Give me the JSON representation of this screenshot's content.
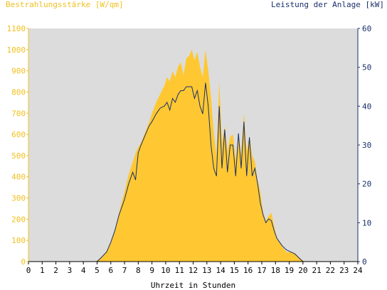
{
  "chart_data": {
    "type": "area",
    "left_axis_title": "Bestrahlungsstärke [W/qm]",
    "right_axis_title": "Leistung der Anlage [kW]",
    "xlabel": "Uhrzeit in Stunden",
    "xlim": [
      0,
      24
    ],
    "ylim_left": [
      0,
      1100
    ],
    "ylim_right": [
      0,
      60
    ],
    "x_ticks": [
      "0",
      "1",
      "2",
      "3",
      "4",
      "5",
      "6",
      "7",
      "8",
      "9",
      "10",
      "11",
      "12",
      "13",
      "14",
      "15",
      "16",
      "17",
      "18",
      "19",
      "20",
      "21",
      "22",
      "23",
      "24"
    ],
    "y_ticks_left": [
      "0",
      "100",
      "200",
      "300",
      "400",
      "500",
      "600",
      "700",
      "800",
      "900",
      "1000",
      "1100"
    ],
    "y_ticks_right": [
      "0",
      "10",
      "20",
      "30",
      "40",
      "50",
      "60"
    ],
    "grid": false,
    "colors": {
      "irradiance_fill": "#ffc832",
      "power_line": "#1a2f6a",
      "plot_background": "#dcdcdc",
      "left_axis_text": "#f0c020",
      "right_axis_text": "#1a2f6a"
    },
    "series": [
      {
        "axis": "left",
        "style": "filled-area",
        "x": [
          0,
          4.9,
          5.2,
          5.6,
          6,
          6.3,
          6.6,
          7,
          7.3,
          7.6,
          7.8,
          8,
          8.2,
          8.5,
          8.8,
          9,
          9.3,
          9.6,
          9.9,
          10.1,
          10.3,
          10.5,
          10.7,
          10.9,
          11.1,
          11.3,
          11.5,
          11.7,
          11.9,
          12.1,
          12.3,
          12.5,
          12.7,
          12.9,
          13.1,
          13.3,
          13.5,
          13.7,
          13.9,
          14.1,
          14.3,
          14.5,
          14.7,
          14.9,
          15.1,
          15.3,
          15.5,
          15.7,
          15.9,
          16.1,
          16.3,
          16.5,
          16.7,
          16.9,
          17.1,
          17.3,
          17.5,
          17.7,
          17.9,
          18.1,
          18.3,
          18.5,
          18.8,
          19.1,
          19.4,
          19.7,
          20,
          20.2,
          20.4,
          24
        ],
        "y": [
          0,
          0,
          15,
          40,
          90,
          150,
          230,
          330,
          410,
          470,
          510,
          540,
          560,
          610,
          660,
          700,
          750,
          790,
          830,
          870,
          850,
          900,
          870,
          920,
          940,
          880,
          960,
          970,
          1000,
          950,
          990,
          920,
          870,
          1000,
          900,
          780,
          610,
          500,
          850,
          560,
          640,
          520,
          590,
          600,
          480,
          600,
          500,
          700,
          520,
          590,
          500,
          470,
          380,
          330,
          230,
          190,
          215,
          230,
          170,
          110,
          90,
          70,
          45,
          45,
          40,
          20,
          5,
          0,
          0,
          0
        ]
      },
      {
        "axis": "right",
        "style": "line",
        "x": [
          0,
          5,
          5.3,
          5.7,
          6,
          6.3,
          6.6,
          7,
          7.3,
          7.6,
          7.8,
          8,
          8.2,
          8.5,
          8.8,
          9,
          9.3,
          9.6,
          9.9,
          10.1,
          10.3,
          10.5,
          10.7,
          10.9,
          11.1,
          11.3,
          11.5,
          11.7,
          11.9,
          12.1,
          12.3,
          12.5,
          12.7,
          12.9,
          13.1,
          13.3,
          13.5,
          13.7,
          13.9,
          14.1,
          14.3,
          14.5,
          14.7,
          14.9,
          15.1,
          15.3,
          15.5,
          15.7,
          15.9,
          16.1,
          16.3,
          16.5,
          16.7,
          16.9,
          17.1,
          17.3,
          17.5,
          17.7,
          17.9,
          18.1,
          18.3,
          18.5,
          18.8,
          19.1,
          19.4,
          19.7,
          20,
          20.2,
          24
        ],
        "y": [
          0,
          0,
          1,
          2.5,
          5,
          8,
          12,
          16,
          20,
          23,
          21,
          28,
          30,
          32.5,
          35,
          36,
          38,
          39.5,
          40,
          41,
          39,
          42,
          41,
          43,
          44,
          44,
          45,
          45,
          45,
          42,
          44,
          40,
          38,
          46,
          40,
          30,
          24,
          22,
          40,
          24,
          34,
          23,
          30,
          30,
          22,
          33,
          24,
          36,
          22,
          32,
          22,
          24,
          20,
          15,
          12,
          10,
          11,
          10.5,
          8,
          6,
          5,
          4,
          3,
          2.5,
          2,
          1,
          0,
          0,
          0
        ]
      }
    ]
  }
}
